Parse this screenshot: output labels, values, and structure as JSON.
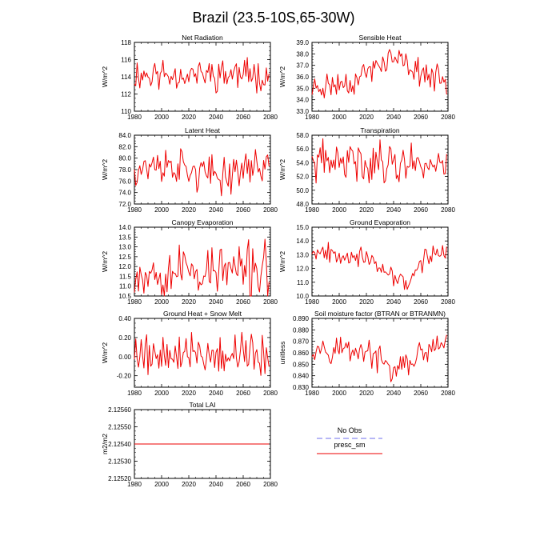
{
  "title": "Brazil (23.5-10S,65-30W)",
  "colors": {
    "series": "#ee0000",
    "obs": "#8c8cf0",
    "axis": "#000000"
  },
  "legend": {
    "items": [
      {
        "label": "No Obs",
        "style": "dashed",
        "color": "#8c8cf0"
      },
      {
        "label": "presc_sm",
        "style": "solid",
        "color": "#ee0000"
      }
    ]
  },
  "chart_data": [
    {
      "id": "net-radiation",
      "type": "line",
      "title": "Net Radiation",
      "ylabel": "W/m^2",
      "xlim": [
        1980,
        2080
      ],
      "ylim": [
        110,
        118
      ],
      "xticks": [
        "1980",
        "2000",
        "2020",
        "2040",
        "2060",
        "2080"
      ],
      "yticks": [
        "110",
        "112",
        "114",
        "116",
        "118"
      ],
      "seed": 11,
      "series": [
        {
          "name": "presc_sm",
          "x_start": 1980,
          "x_end": 2079,
          "trend": [
            [
              1980,
              114.3
            ],
            [
              2079,
              114.3
            ]
          ],
          "spread": 2.6
        }
      ]
    },
    {
      "id": "sensible-heat",
      "type": "line",
      "title": "Sensible Heat",
      "ylabel": "W/m^2",
      "xlim": [
        1980,
        2080
      ],
      "ylim": [
        33,
        39
      ],
      "xticks": [
        "1980",
        "2000",
        "2020",
        "2040",
        "2060",
        "2080"
      ],
      "yticks": [
        "33.0",
        "34.0",
        "35.0",
        "36.0",
        "37.0",
        "38.0",
        "39.0"
      ],
      "seed": 23,
      "series": [
        {
          "name": "presc_sm",
          "x_start": 1980,
          "x_end": 2079,
          "trend": [
            [
              1980,
              35.0
            ],
            [
              2010,
              35.6
            ],
            [
              2037,
              37.6
            ],
            [
              2050,
              37.0
            ],
            [
              2079,
              35.4
            ]
          ],
          "spread": 1.6
        }
      ]
    },
    {
      "id": "latent-heat",
      "type": "line",
      "title": "Latent Heat",
      "ylabel": "W/m^2",
      "xlim": [
        1980,
        2080
      ],
      "ylim": [
        72,
        84
      ],
      "xticks": [
        "1980",
        "2000",
        "2020",
        "2040",
        "2060",
        "2080"
      ],
      "yticks": [
        "72.0",
        "74.0",
        "76.0",
        "78.0",
        "80.0",
        "82.0",
        "84.0"
      ],
      "seed": 37,
      "series": [
        {
          "name": "presc_sm",
          "x_start": 1980,
          "x_end": 2079,
          "trend": [
            [
              1980,
              78.5
            ],
            [
              2010,
              78.7
            ],
            [
              2040,
              76.6
            ],
            [
              2065,
              78.5
            ],
            [
              2079,
              79.0
            ]
          ],
          "spread": 4.5
        }
      ]
    },
    {
      "id": "transpiration",
      "type": "line",
      "title": "Transpiration",
      "ylabel": "W/m^2",
      "xlim": [
        1980,
        2080
      ],
      "ylim": [
        48,
        58
      ],
      "xticks": [
        "1980",
        "2000",
        "2020",
        "2040",
        "2060",
        "2080"
      ],
      "yticks": [
        "48.0",
        "50.0",
        "52.0",
        "54.0",
        "56.0",
        "58.0"
      ],
      "seed": 41,
      "series": [
        {
          "name": "presc_sm",
          "x_start": 1980,
          "x_end": 2079,
          "trend": [
            [
              1980,
              54.0
            ],
            [
              2079,
              54.0
            ]
          ],
          "spread": 4.2
        }
      ]
    },
    {
      "id": "canopy-evaporation",
      "type": "line",
      "title": "Canopy Evaporation",
      "ylabel": "W/m^2",
      "xlim": [
        1980,
        2080
      ],
      "ylim": [
        10.5,
        14
      ],
      "xticks": [
        "1980",
        "2000",
        "2020",
        "2040",
        "2060",
        "2080"
      ],
      "yticks": [
        "10.5",
        "11.0",
        "11.5",
        "12.0",
        "12.5",
        "13.0",
        "13.5",
        "14.0"
      ],
      "seed": 53,
      "series": [
        {
          "name": "presc_sm",
          "x_start": 1980,
          "x_end": 2079,
          "trend": [
            [
              1980,
              11.8
            ],
            [
              2079,
              11.8
            ]
          ],
          "spread": 1.9
        }
      ]
    },
    {
      "id": "ground-evaporation",
      "type": "line",
      "title": "Ground Evaporation",
      "ylabel": "W/m^2",
      "xlim": [
        1980,
        2080
      ],
      "ylim": [
        10,
        15
      ],
      "xticks": [
        "1980",
        "2000",
        "2020",
        "2040",
        "2060",
        "2080"
      ],
      "yticks": [
        "10.0",
        "11.0",
        "12.0",
        "13.0",
        "14.0",
        "15.0"
      ],
      "seed": 67,
      "series": [
        {
          "name": "presc_sm",
          "x_start": 1980,
          "x_end": 2079,
          "trend": [
            [
              1980,
              13.4
            ],
            [
              2015,
              12.9
            ],
            [
              2035,
              11.6
            ],
            [
              2052,
              11.0
            ],
            [
              2065,
              12.9
            ],
            [
              2079,
              13.4
            ]
          ],
          "spread": 1.0
        }
      ]
    },
    {
      "id": "ground-heat-snow-melt",
      "type": "line",
      "title": "Ground Heat + Snow Melt",
      "ylabel": "W/m^2",
      "xlim": [
        1980,
        2080
      ],
      "ylim": [
        -0.32,
        0.4
      ],
      "xticks": [
        "1980",
        "2000",
        "2020",
        "2040",
        "2060",
        "2080"
      ],
      "yticks": [
        "-0.20",
        "0.00",
        "0.20",
        "0.40"
      ],
      "seed": 79,
      "series": [
        {
          "name": "presc_sm",
          "x_start": 1980,
          "x_end": 2079,
          "trend": [
            [
              1980,
              0.05
            ],
            [
              2079,
              0.02
            ]
          ],
          "spread": 0.3
        }
      ]
    },
    {
      "id": "soil-moisture-factor",
      "type": "line",
      "title": "Soil moisture factor (BTRAN or BTRANMN)",
      "ylabel": "unitless",
      "xlim": [
        1980,
        2080
      ],
      "ylim": [
        0.83,
        0.89
      ],
      "xticks": [
        "1980",
        "2000",
        "2020",
        "2040",
        "2060",
        "2080"
      ],
      "yticks": [
        "0.830",
        "0.840",
        "0.850",
        "0.860",
        "0.870",
        "0.880",
        "0.890"
      ],
      "seed": 97,
      "series": [
        {
          "name": "presc_sm",
          "x_start": 1980,
          "x_end": 2079,
          "trend": [
            [
              1980,
              0.866
            ],
            [
              2020,
              0.862
            ],
            [
              2040,
              0.843
            ],
            [
              2060,
              0.858
            ],
            [
              2079,
              0.868
            ]
          ],
          "spread": 0.016
        }
      ]
    },
    {
      "id": "total-lai",
      "type": "line",
      "title": "Total LAI",
      "ylabel": "m2/m2",
      "xlim": [
        1980,
        2080
      ],
      "ylim": [
        2.1252,
        2.1256
      ],
      "xticks": [
        "1980",
        "2000",
        "2020",
        "2040",
        "2060",
        "2080"
      ],
      "yticks": [
        "2.12520",
        "2.12530",
        "2.12540",
        "2.12550",
        "2.12560"
      ],
      "seed": 0,
      "series": [
        {
          "name": "presc_sm",
          "x_start": 1980,
          "x_end": 2079,
          "trend": [
            [
              1980,
              2.1254
            ],
            [
              2079,
              2.1254
            ]
          ],
          "spread": 0
        }
      ]
    }
  ]
}
